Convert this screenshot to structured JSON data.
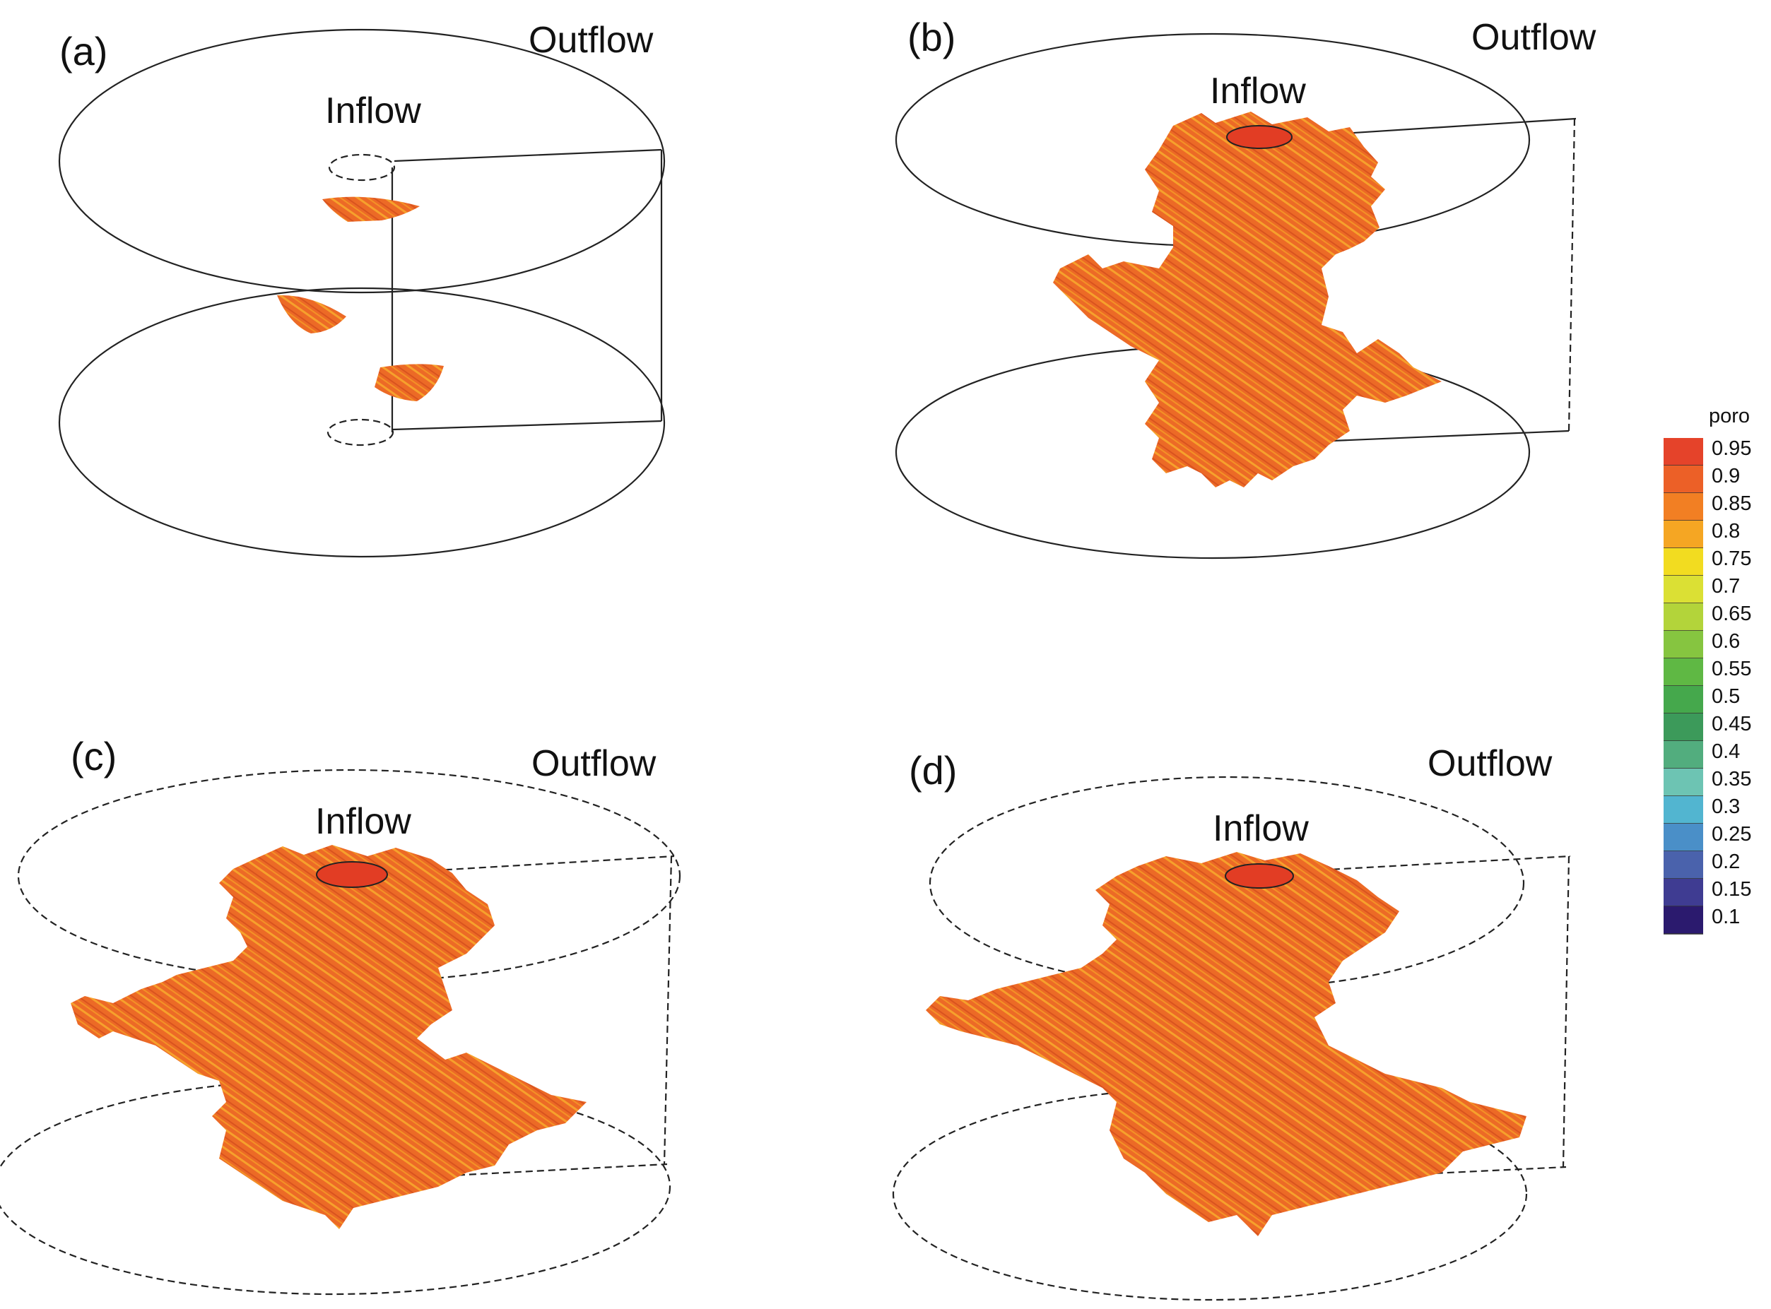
{
  "panels": [
    {
      "id": "a",
      "label": "(a)",
      "inflow": "Inflow",
      "outflow": "Outflow"
    },
    {
      "id": "b",
      "label": "(b)",
      "inflow": "Inflow",
      "outflow": "Outflow"
    },
    {
      "id": "c",
      "label": "(c)",
      "inflow": "Inflow",
      "outflow": "Outflow"
    },
    {
      "id": "d",
      "label": "(d)",
      "inflow": "Inflow",
      "outflow": "Outflow"
    }
  ],
  "colorbar": {
    "title": "poro",
    "ticks": [
      "0.95",
      "0.9",
      "0.85",
      "0.8",
      "0.75",
      "0.7",
      "0.65",
      "0.6",
      "0.55",
      "0.5",
      "0.45",
      "0.4",
      "0.35",
      "0.3",
      "0.25",
      "0.2",
      "0.15",
      "0.1"
    ],
    "colors": [
      "#e5432a",
      "#ec6027",
      "#f27f23",
      "#f5a623",
      "#f2dc20",
      "#dbe034",
      "#b3d43a",
      "#86c540",
      "#5fb844",
      "#45a84c",
      "#3c9a5a",
      "#52ad7e",
      "#6dc4b3",
      "#52b5d0",
      "#4a8fc8",
      "#4a62ac",
      "#3f3c92",
      "#2b1a6e"
    ]
  },
  "colors": {
    "dissolution_fill": "#ec6a26",
    "dissolution_streak": "#f6a12c",
    "inlet_fill": "#e23d24",
    "outline": "#222222"
  }
}
